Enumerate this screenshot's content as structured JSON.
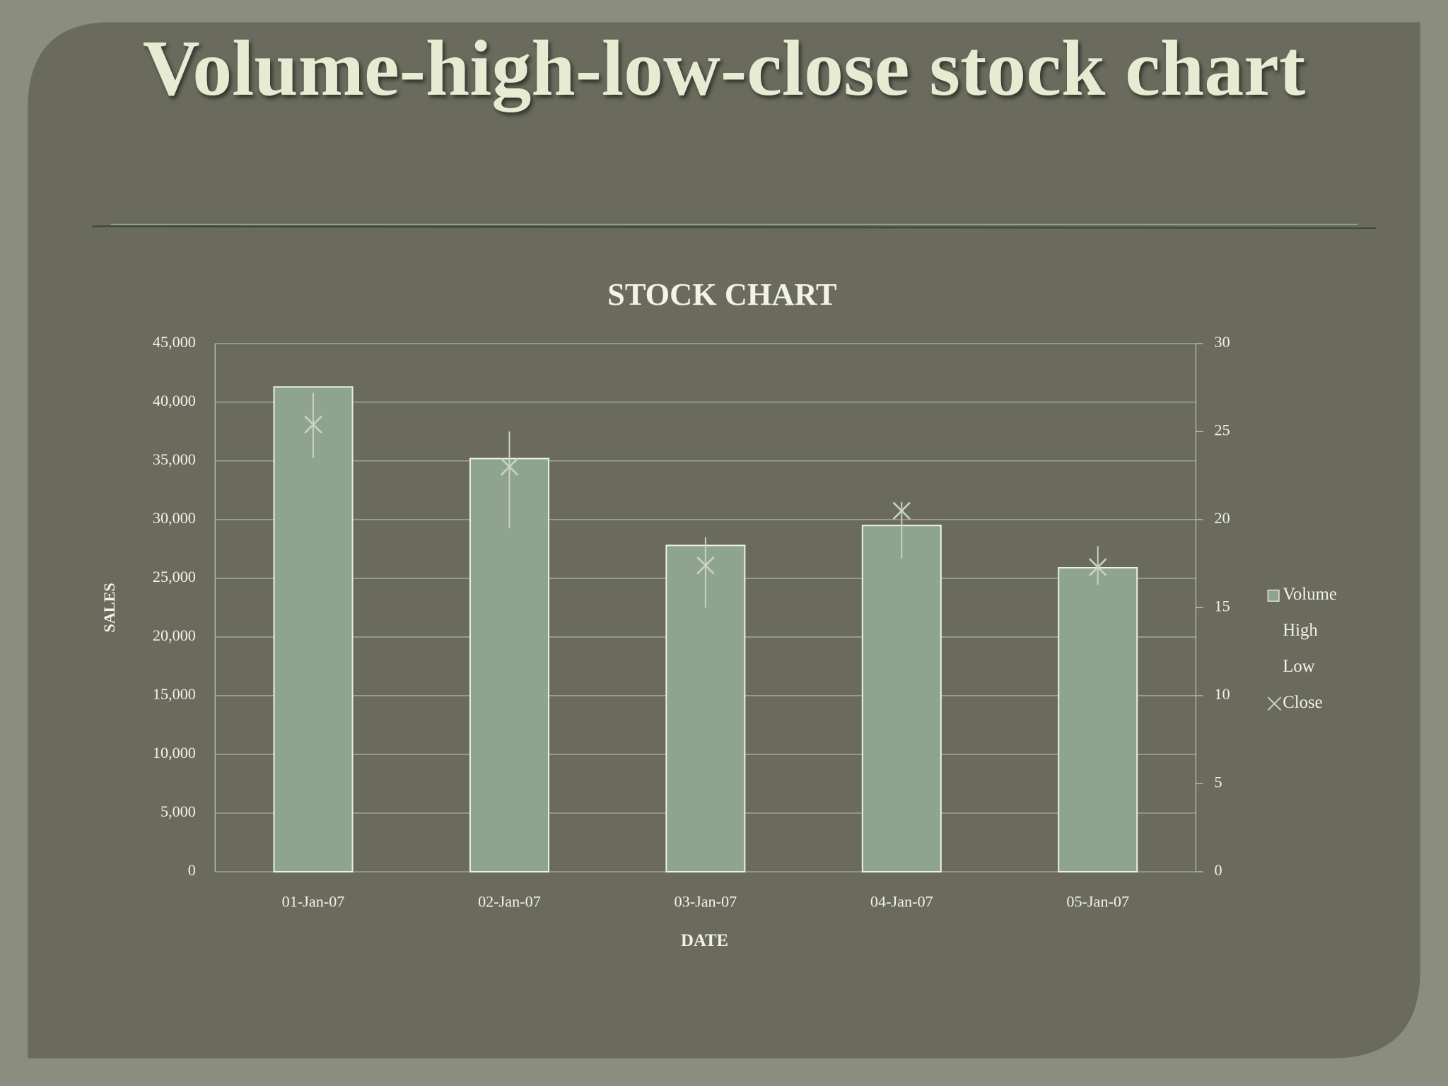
{
  "title": "Volume-high-low-close stock chart",
  "chart_data": {
    "type": "stock",
    "title": "STOCK CHART",
    "x_label": "DATE",
    "y_label": "SALES",
    "categories": [
      "01-Jan-07",
      "02-Jan-07",
      "03-Jan-07",
      "04-Jan-07",
      "05-Jan-07"
    ],
    "series": [
      {
        "name": "Volume",
        "color": "#8fa48f",
        "values": [
          41300,
          35200,
          27800,
          29500,
          25900
        ]
      },
      {
        "name": "High",
        "axis": "y2",
        "color": "#c9d3c2",
        "values": [
          27.2,
          25.0,
          19.0,
          21.0,
          18.5
        ]
      },
      {
        "name": "Low",
        "axis": "y2",
        "color": "#c9d3c2",
        "values": [
          23.5,
          19.5,
          15.0,
          17.8,
          16.3
        ]
      },
      {
        "name": "Close",
        "axis": "y2",
        "color": "#c9d3c2",
        "values": [
          25.4,
          23.0,
          17.4,
          20.5,
          17.3
        ]
      }
    ],
    "ylim": [
      0,
      45000
    ],
    "yticks": [
      0,
      {
        "value": 5000,
        "label": "5,000"
      },
      {
        "value": 10000,
        "label": "10,000"
      },
      {
        "value": 15000,
        "label": "15,000"
      },
      {
        "value": 20000,
        "label": "20,000"
      },
      {
        "value": 25000,
        "label": "25,000"
      },
      {
        "value": 30000,
        "label": "30,000"
      },
      {
        "value": 35000,
        "label": "35,000"
      },
      {
        "value": 40000,
        "label": "40,000"
      },
      {
        "value": 45000,
        "label": "45,000"
      }
    ],
    "y2lim": [
      0,
      30
    ],
    "y2ticks": [
      0,
      5,
      10,
      15,
      20,
      25,
      30
    ],
    "grid": true,
    "legend": "right"
  }
}
